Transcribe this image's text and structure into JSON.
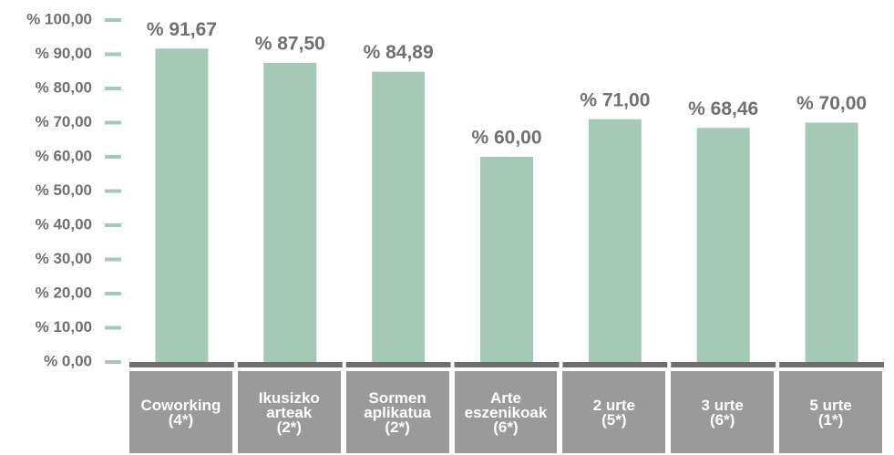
{
  "chart_data": {
    "type": "bar",
    "categories": [
      "Coworking\n(4*)",
      "Ikusizko\narteak\n(2*)",
      "Sormen\naplikatua\n(2*)",
      "Arte\neszenikoak\n(6*)",
      "2 urte\n(5*)",
      "3 urte\n(6*)",
      "5 urte\n(1*)"
    ],
    "values": [
      91.67,
      87.5,
      84.89,
      60.0,
      71.0,
      68.46,
      70.0
    ],
    "value_labels": [
      "% 91,67",
      "% 87,50",
      "% 84,89",
      "% 60,00",
      "% 71,00",
      "% 68,46",
      "% 70,00"
    ],
    "color": "#a4c9b6",
    "ylim": [
      0,
      100
    ],
    "yticks": [
      {
        "value": 0,
        "label": "% 0,00"
      },
      {
        "value": 10,
        "label": "% 10,00"
      },
      {
        "value": 20,
        "label": "% 20,00"
      },
      {
        "value": 30,
        "label": "% 30,00"
      },
      {
        "value": 40,
        "label": "% 40,00"
      },
      {
        "value": 50,
        "label": "% 50,00"
      },
      {
        "value": 60,
        "label": "% 60,00"
      },
      {
        "value": 70,
        "label": "% 70,00"
      },
      {
        "value": 80,
        "label": "% 80,00"
      },
      {
        "value": 90,
        "label": "% 90,00"
      },
      {
        "value": 100,
        "label": "% 100,00"
      }
    ]
  }
}
